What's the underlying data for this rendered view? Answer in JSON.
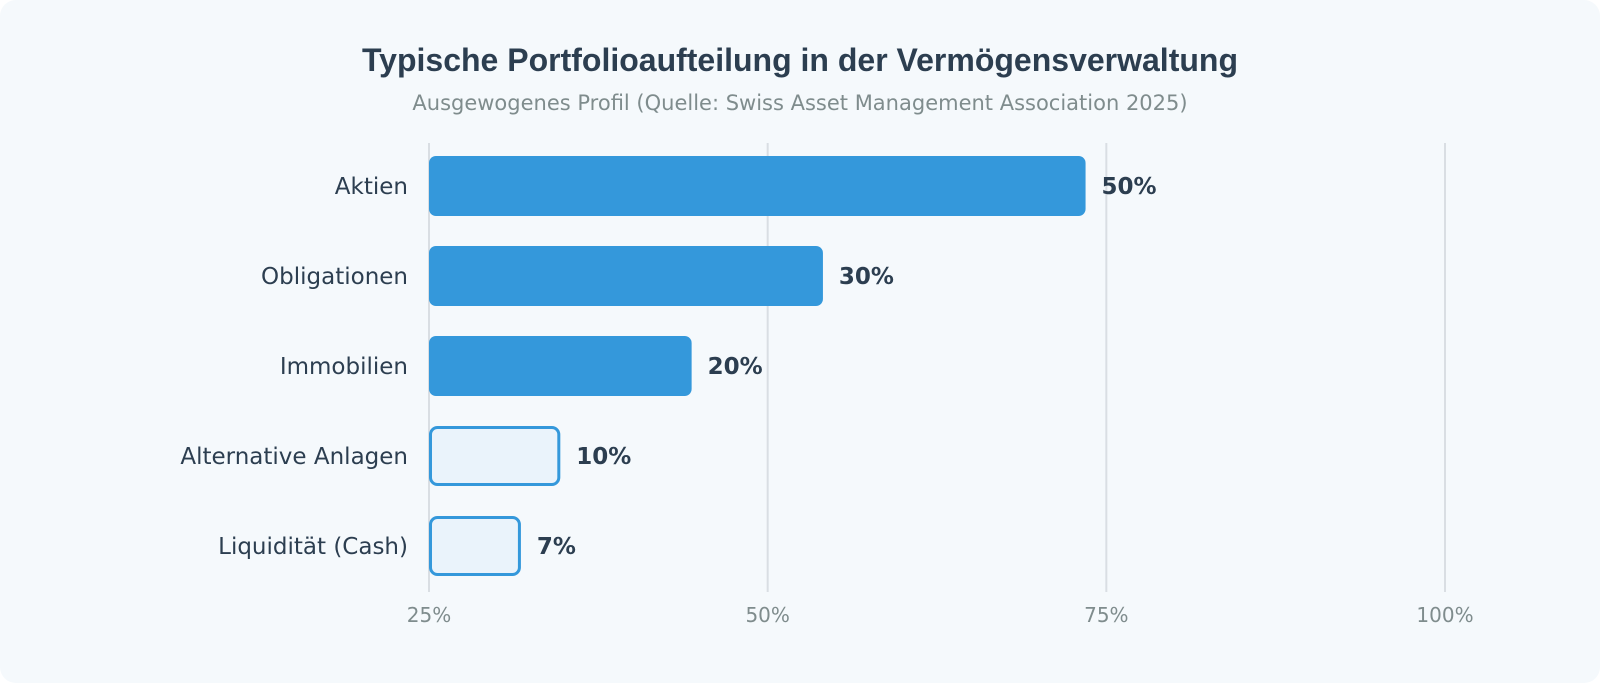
{
  "chart_data": {
    "type": "bar",
    "orientation": "horizontal",
    "title": "Typische Portfolioaufteilung in der Vermögensverwaltung",
    "subtitle": "Ausgewogenes Profil (Quelle: Swiss Asset Management Association 2025)",
    "categories": [
      "Aktien",
      "Obligationen",
      "Immobilien",
      "Alternative Anlagen",
      "Liquidität (Cash)"
    ],
    "values": [
      50,
      30,
      20,
      10,
      7
    ],
    "value_labels": [
      "50%",
      "30%",
      "20%",
      "10%",
      "7%"
    ],
    "highlight": [
      true,
      true,
      true,
      false,
      false
    ],
    "xlim": [
      25,
      100
    ],
    "xticks": [
      25,
      50,
      75,
      100
    ],
    "xtick_labels": [
      "25%",
      "50%",
      "75%",
      "100%"
    ],
    "grid": true,
    "colors": {
      "primary_fill": "#3498db",
      "secondary_fill": "#eaf3fb",
      "secondary_stroke": "#3498db",
      "grid": "#d9dee3"
    }
  }
}
